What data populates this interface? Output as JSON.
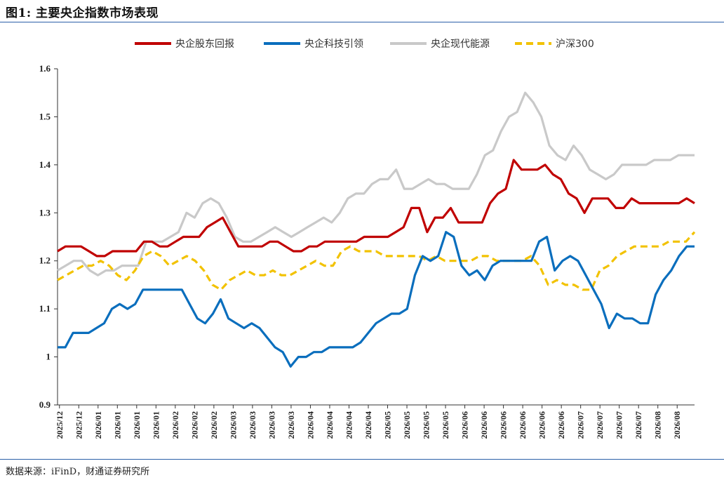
{
  "title": "图1: 主要央企指数市场表现",
  "source": "数据来源：iFinD，财通证券研究所",
  "chart_data": {
    "type": "line",
    "legend_position": "top",
    "grid": false,
    "ylim": [
      0.9,
      1.6
    ],
    "y_ticks": [
      "0.9",
      "1",
      "1.1",
      "1.2",
      "1.3",
      "1.4",
      "1.5",
      "1.6"
    ],
    "x_tick_labels": [
      "2025/12",
      "2025/12",
      "2026/01",
      "2026/01",
      "2026/01",
      "2026/01",
      "2026/02",
      "2026/02",
      "2026/02",
      "2026/03",
      "2026/03",
      "2026/03",
      "2026/03",
      "2026/04",
      "2026/04",
      "2026/04",
      "2026/04",
      "2026/05",
      "2026/05",
      "2026/05",
      "2026/05",
      "2026/06",
      "2026/06",
      "2026/06",
      "2026/06",
      "2026/06",
      "2026/06",
      "2026/07",
      "2026/07",
      "2026/07",
      "2026/07",
      "2026/08",
      "2026/08"
    ],
    "series": [
      {
        "name": "央企股东回报",
        "color": "#c00000",
        "style": "solid",
        "values": [
          1.22,
          1.23,
          1.23,
          1.23,
          1.22,
          1.21,
          1.21,
          1.22,
          1.22,
          1.22,
          1.22,
          1.24,
          1.24,
          1.23,
          1.23,
          1.24,
          1.25,
          1.25,
          1.25,
          1.27,
          1.28,
          1.29,
          1.26,
          1.23,
          1.23,
          1.23,
          1.23,
          1.24,
          1.24,
          1.23,
          1.22,
          1.22,
          1.23,
          1.23,
          1.24,
          1.24,
          1.24,
          1.24,
          1.24,
          1.25,
          1.25,
          1.25,
          1.25,
          1.26,
          1.27,
          1.31,
          1.31,
          1.26,
          1.29,
          1.29,
          1.31,
          1.28,
          1.28,
          1.28,
          1.28,
          1.32,
          1.34,
          1.35,
          1.41,
          1.39,
          1.39,
          1.39,
          1.4,
          1.38,
          1.37,
          1.34,
          1.33,
          1.3,
          1.33,
          1.33,
          1.33,
          1.31,
          1.31,
          1.33,
          1.32,
          1.32,
          1.32,
          1.32,
          1.32,
          1.32,
          1.33,
          1.32
        ]
      },
      {
        "name": "央企科技引领",
        "color": "#0a6ebd",
        "style": "solid",
        "values": [
          1.02,
          1.02,
          1.05,
          1.05,
          1.05,
          1.06,
          1.07,
          1.1,
          1.11,
          1.1,
          1.11,
          1.14,
          1.14,
          1.14,
          1.14,
          1.14,
          1.14,
          1.11,
          1.08,
          1.07,
          1.09,
          1.12,
          1.08,
          1.07,
          1.06,
          1.07,
          1.06,
          1.04,
          1.02,
          1.01,
          0.98,
          1.0,
          1.0,
          1.01,
          1.01,
          1.02,
          1.02,
          1.02,
          1.02,
          1.03,
          1.05,
          1.07,
          1.08,
          1.09,
          1.09,
          1.1,
          1.17,
          1.21,
          1.2,
          1.21,
          1.26,
          1.25,
          1.19,
          1.17,
          1.18,
          1.16,
          1.19,
          1.2,
          1.2,
          1.2,
          1.2,
          1.2,
          1.24,
          1.25,
          1.18,
          1.2,
          1.21,
          1.2,
          1.17,
          1.14,
          1.11,
          1.06,
          1.09,
          1.08,
          1.08,
          1.07,
          1.07,
          1.13,
          1.16,
          1.18,
          1.21,
          1.23,
          1.23
        ]
      },
      {
        "name": "央企现代能源",
        "color": "#c9c9c9",
        "style": "solid",
        "values": [
          1.18,
          1.19,
          1.2,
          1.2,
          1.18,
          1.17,
          1.18,
          1.18,
          1.19,
          1.19,
          1.19,
          1.24,
          1.24,
          1.24,
          1.25,
          1.26,
          1.3,
          1.29,
          1.32,
          1.33,
          1.32,
          1.29,
          1.25,
          1.24,
          1.24,
          1.25,
          1.26,
          1.27,
          1.26,
          1.25,
          1.26,
          1.27,
          1.28,
          1.29,
          1.28,
          1.3,
          1.33,
          1.34,
          1.34,
          1.36,
          1.37,
          1.37,
          1.39,
          1.35,
          1.35,
          1.36,
          1.37,
          1.36,
          1.36,
          1.35,
          1.35,
          1.35,
          1.38,
          1.42,
          1.43,
          1.47,
          1.5,
          1.51,
          1.55,
          1.53,
          1.5,
          1.44,
          1.42,
          1.41,
          1.44,
          1.42,
          1.39,
          1.38,
          1.37,
          1.38,
          1.4,
          1.4,
          1.4,
          1.4,
          1.41,
          1.41,
          1.41,
          1.42,
          1.42,
          1.42
        ]
      },
      {
        "name": "沪深300",
        "color": "#f2c200",
        "style": "dashed",
        "values": [
          1.16,
          1.17,
          1.18,
          1.19,
          1.19,
          1.2,
          1.19,
          1.17,
          1.16,
          1.18,
          1.21,
          1.22,
          1.21,
          1.19,
          1.2,
          1.21,
          1.2,
          1.18,
          1.15,
          1.14,
          1.16,
          1.17,
          1.18,
          1.17,
          1.17,
          1.18,
          1.17,
          1.17,
          1.18,
          1.19,
          1.2,
          1.19,
          1.19,
          1.22,
          1.23,
          1.22,
          1.22,
          1.22,
          1.21,
          1.21,
          1.21,
          1.21,
          1.21,
          1.2,
          1.21,
          1.2,
          1.2,
          1.2,
          1.2,
          1.21,
          1.21,
          1.2,
          1.2,
          1.2,
          1.2,
          1.21,
          1.19,
          1.15,
          1.16,
          1.15,
          1.15,
          1.14,
          1.14,
          1.18,
          1.19,
          1.21,
          1.22,
          1.23,
          1.23,
          1.23,
          1.23,
          1.24,
          1.24,
          1.24,
          1.26
        ]
      }
    ]
  }
}
